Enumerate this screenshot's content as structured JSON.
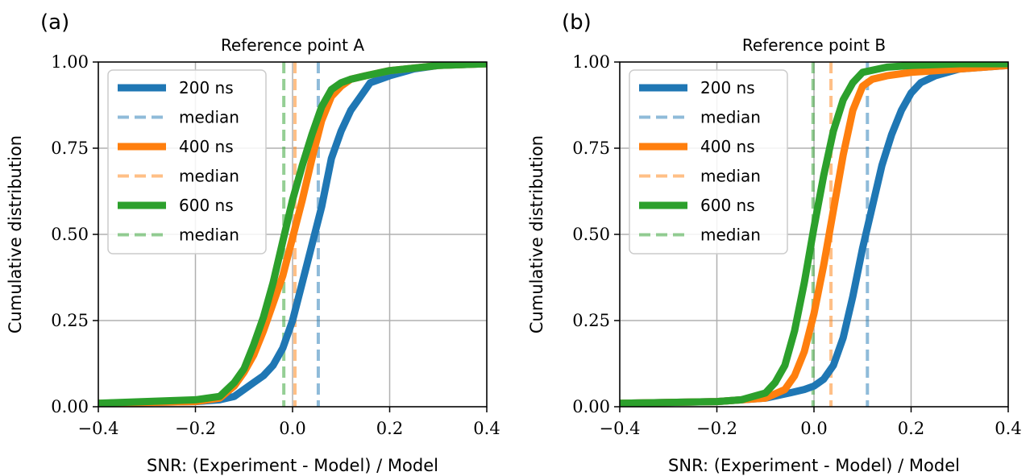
{
  "colors": {
    "blue": "#1f77b4",
    "orange": "#ff7f0e",
    "green": "#2ca02c",
    "grid": "#b0b0b0"
  },
  "chart_data": [
    {
      "type": "line",
      "panel_label": "(a)",
      "title": "Reference point A",
      "xlabel": "SNR: (Experiment - Model) / Model",
      "ylabel": "Cumulative distribution",
      "xlim": [
        -0.4,
        0.4
      ],
      "ylim": [
        0,
        1
      ],
      "xticks": [
        -0.4,
        -0.2,
        0.0,
        0.2,
        0.4
      ],
      "xtick_labels": [
        "−0.4",
        "−0.2",
        "0.0",
        "0.2",
        "0.4"
      ],
      "yticks": [
        0,
        0.25,
        0.5,
        0.75,
        1.0
      ],
      "ytick_labels": [
        "0.00",
        "0.25",
        "0.50",
        "0.75",
        "1.00"
      ],
      "grid": true,
      "legend_position": "upper-left",
      "series": [
        {
          "name": "200 ns",
          "color": "#1f77b4",
          "median": 0.053,
          "x": [
            -0.4,
            -0.2,
            -0.15,
            -0.12,
            -0.1,
            -0.08,
            -0.06,
            -0.04,
            -0.02,
            0.0,
            0.02,
            0.04,
            0.06,
            0.08,
            0.1,
            0.12,
            0.14,
            0.16,
            0.2,
            0.25,
            0.3,
            0.4
          ],
          "y": [
            0.01,
            0.015,
            0.02,
            0.03,
            0.05,
            0.07,
            0.09,
            0.12,
            0.17,
            0.25,
            0.36,
            0.47,
            0.58,
            0.72,
            0.8,
            0.86,
            0.9,
            0.94,
            0.96,
            0.98,
            0.99,
            0.995
          ]
        },
        {
          "name": "400 ns",
          "color": "#ff7f0e",
          "median": 0.005,
          "x": [
            -0.4,
            -0.2,
            -0.15,
            -0.12,
            -0.1,
            -0.08,
            -0.06,
            -0.04,
            -0.02,
            0.0,
            0.02,
            0.04,
            0.06,
            0.08,
            0.1,
            0.12,
            0.15,
            0.2,
            0.3,
            0.4
          ],
          "y": [
            0.01,
            0.015,
            0.025,
            0.06,
            0.1,
            0.15,
            0.22,
            0.3,
            0.38,
            0.49,
            0.6,
            0.72,
            0.83,
            0.9,
            0.93,
            0.95,
            0.96,
            0.975,
            0.99,
            0.995
          ]
        },
        {
          "name": "600 ns",
          "color": "#2ca02c",
          "median": -0.018,
          "x": [
            -0.4,
            -0.2,
            -0.15,
            -0.12,
            -0.1,
            -0.08,
            -0.06,
            -0.04,
            -0.02,
            0.0,
            0.02,
            0.04,
            0.06,
            0.08,
            0.1,
            0.12,
            0.15,
            0.2,
            0.3,
            0.4
          ],
          "y": [
            0.01,
            0.02,
            0.03,
            0.07,
            0.11,
            0.18,
            0.26,
            0.36,
            0.48,
            0.6,
            0.7,
            0.79,
            0.87,
            0.92,
            0.94,
            0.95,
            0.96,
            0.975,
            0.99,
            0.995
          ]
        }
      ],
      "legend": [
        "200 ns",
        "median",
        "400 ns",
        "median",
        "600 ns",
        "median"
      ]
    },
    {
      "type": "line",
      "panel_label": "(b)",
      "title": "Reference point B",
      "xlabel": "SNR: (Experiment - Model) / Model",
      "ylabel": "Cumulative distribution",
      "xlim": [
        -0.4,
        0.4
      ],
      "ylim": [
        0,
        1
      ],
      "xticks": [
        -0.4,
        -0.2,
        0.0,
        0.2,
        0.4
      ],
      "xtick_labels": [
        "−0.4",
        "−0.2",
        "0.0",
        "0.2",
        "0.4"
      ],
      "yticks": [
        0,
        0.25,
        0.5,
        0.75,
        1.0
      ],
      "ytick_labels": [
        "0.00",
        "0.25",
        "0.50",
        "0.75",
        "1.00"
      ],
      "grid": true,
      "legend_position": "upper-left",
      "series": [
        {
          "name": "200 ns",
          "color": "#1f77b4",
          "median": 0.11,
          "x": [
            -0.4,
            -0.2,
            -0.1,
            -0.05,
            -0.02,
            0.0,
            0.02,
            0.04,
            0.06,
            0.08,
            0.1,
            0.12,
            0.14,
            0.16,
            0.18,
            0.2,
            0.22,
            0.25,
            0.3,
            0.4
          ],
          "y": [
            0.01,
            0.015,
            0.025,
            0.04,
            0.05,
            0.06,
            0.08,
            0.12,
            0.2,
            0.32,
            0.46,
            0.58,
            0.7,
            0.79,
            0.86,
            0.91,
            0.94,
            0.96,
            0.98,
            0.99
          ]
        },
        {
          "name": "400 ns",
          "color": "#ff7f0e",
          "median": 0.035,
          "x": [
            -0.4,
            -0.2,
            -0.1,
            -0.06,
            -0.04,
            -0.02,
            0.0,
            0.02,
            0.04,
            0.06,
            0.08,
            0.1,
            0.12,
            0.15,
            0.2,
            0.3,
            0.4
          ],
          "y": [
            0.01,
            0.015,
            0.025,
            0.05,
            0.09,
            0.16,
            0.27,
            0.41,
            0.57,
            0.73,
            0.86,
            0.93,
            0.95,
            0.96,
            0.97,
            0.98,
            0.99
          ]
        },
        {
          "name": "600 ns",
          "color": "#2ca02c",
          "median": -0.002,
          "x": [
            -0.4,
            -0.2,
            -0.15,
            -0.1,
            -0.08,
            -0.06,
            -0.04,
            -0.02,
            0.0,
            0.02,
            0.04,
            0.06,
            0.08,
            0.1,
            0.15,
            0.2,
            0.3,
            0.4
          ],
          "y": [
            0.01,
            0.015,
            0.02,
            0.04,
            0.07,
            0.12,
            0.22,
            0.36,
            0.52,
            0.67,
            0.8,
            0.89,
            0.94,
            0.97,
            0.985,
            0.99,
            0.995,
            0.995
          ]
        }
      ],
      "legend": [
        "200 ns",
        "median",
        "400 ns",
        "median",
        "600 ns",
        "median"
      ]
    }
  ]
}
